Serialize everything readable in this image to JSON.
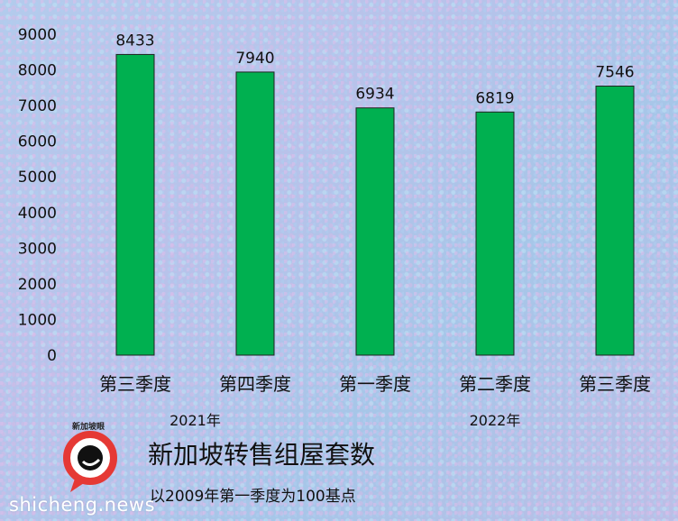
{
  "chart_data": {
    "type": "bar",
    "title": "新加坡转售组屋套数",
    "subtitle": "以2009年第一季度为100基点",
    "categories": [
      "第三季度",
      "第四季度",
      "第一季度",
      "第二季度",
      "第三季度"
    ],
    "values": [
      8433,
      7940,
      6934,
      6819,
      7546
    ],
    "year_groups": [
      {
        "label": "2021年",
        "categories": [
          0,
          1
        ]
      },
      {
        "label": "2022年",
        "categories": [
          2,
          3,
          4
        ]
      }
    ],
    "yticks": [
      0,
      1000,
      2000,
      3000,
      4000,
      5000,
      6000,
      7000,
      8000,
      9000
    ],
    "ylim": [
      0,
      9000
    ],
    "grid": false,
    "legend": "none",
    "bar_color": "#00b050",
    "bar_border": "#222222"
  },
  "branding": {
    "logo_text": "新加坡眼",
    "watermark": "shicheng.news",
    "logo_colors": {
      "ring": "#e53935",
      "center": "#111111"
    }
  }
}
